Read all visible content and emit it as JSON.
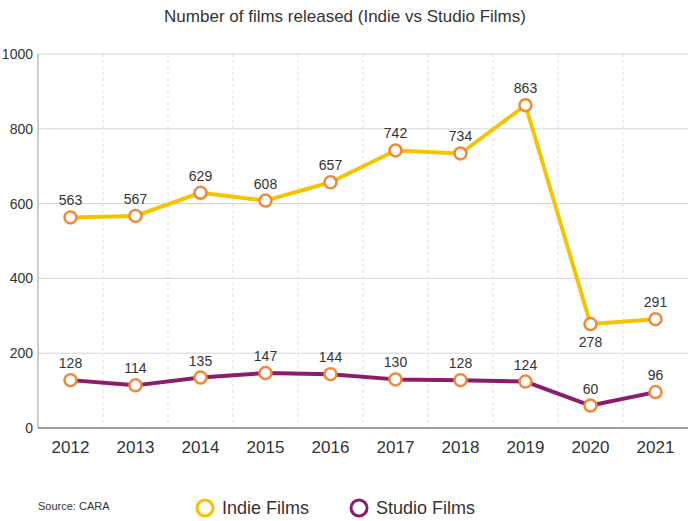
{
  "chart_data": {
    "type": "line",
    "title": "Number of films released (Indie vs Studio Films)",
    "categories": [
      "2012",
      "2013",
      "2014",
      "2015",
      "2016",
      "2017",
      "2018",
      "2019",
      "2020",
      "2021"
    ],
    "series": [
      {
        "name": "Indie Films",
        "color": "#f5c400",
        "marker": "circle",
        "values": [
          563,
          567,
          629,
          608,
          657,
          742,
          734,
          863,
          278,
          291
        ]
      },
      {
        "name": "Studio Films",
        "color": "#8c1c6e",
        "marker": "circle",
        "values": [
          128,
          114,
          135,
          147,
          144,
          130,
          128,
          124,
          60,
          96
        ]
      }
    ],
    "ylim": [
      0,
      1000
    ],
    "yticks": [
      0,
      200,
      400,
      600,
      800,
      1000
    ],
    "grid": true,
    "data_labels": true,
    "legend": "bottom",
    "source": "Source: CARA"
  }
}
